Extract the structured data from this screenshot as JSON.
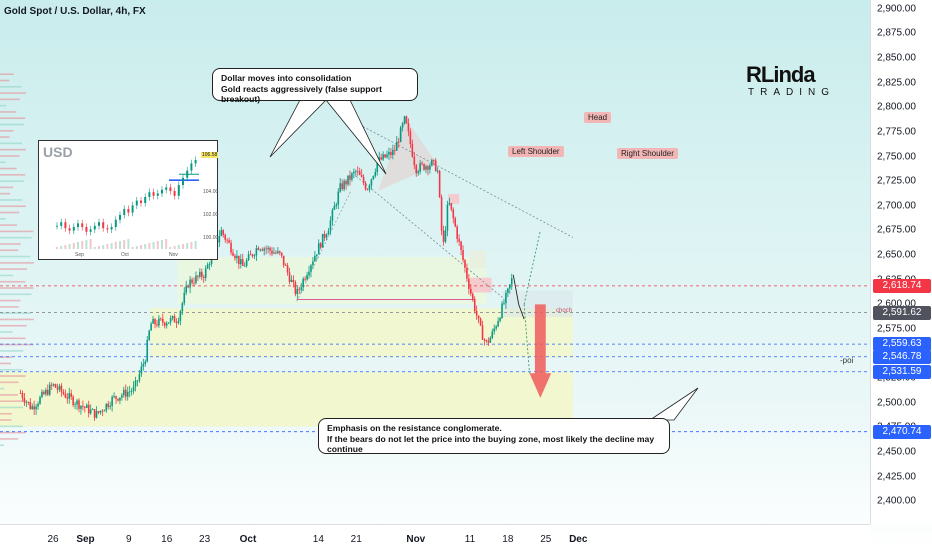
{
  "chart_title": "Gold Spot / U.S. Dollar, 4h, FX",
  "colors": {
    "up": "#089981",
    "down": "#f23645",
    "resistance": "#f23645",
    "current": "#50535e",
    "support": "#2962ff",
    "arrow": "#f05a5a",
    "zone": "#f3f7c8"
  },
  "chart_data": {
    "type": "candlestick",
    "title": "Gold Spot / U.S. Dollar, 4h, FX",
    "y_axis": {
      "ticks": [
        "2,900.00",
        "2,875.00",
        "2,850.00",
        "2,825.00",
        "2,800.00",
        "2,775.00",
        "2,750.00",
        "2,725.00",
        "2,700.00",
        "2,675.00",
        "2,650.00",
        "2,625.00",
        "2,600.00",
        "2,575.00",
        "2,550.00",
        "2,525.00",
        "2,500.00",
        "2,475.00",
        "2,450.00",
        "2,425.00",
        "2,400.00"
      ],
      "tick_values": [
        2900,
        2875,
        2850,
        2825,
        2800,
        2775,
        2750,
        2725,
        2700,
        2675,
        2650,
        2625,
        2600,
        2575,
        2550,
        2525,
        2500,
        2475,
        2450,
        2425,
        2400
      ],
      "range": [
        2377,
        2909
      ]
    },
    "x_axis": {
      "ticks": [
        {
          "label": "26",
          "bold": false
        },
        {
          "label": "Sep",
          "bold": true
        },
        {
          "label": "9",
          "bold": false
        },
        {
          "label": "16",
          "bold": false
        },
        {
          "label": "23",
          "bold": false
        },
        {
          "label": "Oct",
          "bold": true
        },
        {
          "label": "14",
          "bold": false
        },
        {
          "label": "21",
          "bold": false
        },
        {
          "label": "Nov",
          "bold": true
        },
        {
          "label": "11",
          "bold": false
        },
        {
          "label": "18",
          "bold": false
        },
        {
          "label": "25",
          "bold": false
        },
        {
          "label": "Dec",
          "bold": true
        }
      ]
    },
    "price_labels": [
      {
        "label": "2,618.74",
        "value": 2618.74,
        "kind": "resistance"
      },
      {
        "label": "2,591.62",
        "value": 2591.62,
        "kind": "current"
      },
      {
        "label": "2,559.63",
        "value": 2559.63,
        "kind": "support"
      },
      {
        "label": "2,546.78",
        "value": 2546.78,
        "kind": "support"
      },
      {
        "label": "2,531.59",
        "value": 2531.59,
        "kind": "support"
      },
      {
        "label": "2,470.74",
        "value": 2470.74,
        "kind": "support"
      }
    ],
    "price_path": [
      {
        "date": "Aug 20",
        "price": 2510
      },
      {
        "date": "Aug 22",
        "price": 2495
      },
      {
        "date": "Aug 26",
        "price": 2518
      },
      {
        "date": "Aug 29",
        "price": 2505
      },
      {
        "date": "Sep 3",
        "price": 2488
      },
      {
        "date": "Sep 6",
        "price": 2504
      },
      {
        "date": "Sep 10",
        "price": 2514
      },
      {
        "date": "Sep 12",
        "price": 2545
      },
      {
        "date": "Sep 13",
        "price": 2580
      },
      {
        "date": "Sep 18",
        "price": 2585
      },
      {
        "date": "Sep 20",
        "price": 2622
      },
      {
        "date": "Sep 23",
        "price": 2631
      },
      {
        "date": "Sep 26",
        "price": 2675
      },
      {
        "date": "Sep 30",
        "price": 2638
      },
      {
        "date": "Oct 3",
        "price": 2660
      },
      {
        "date": "Oct 7",
        "price": 2650
      },
      {
        "date": "Oct 10",
        "price": 2610
      },
      {
        "date": "Oct 12",
        "price": 2635
      },
      {
        "date": "Oct 16",
        "price": 2680
      },
      {
        "date": "Oct 18",
        "price": 2718
      },
      {
        "date": "Oct 21",
        "price": 2735
      },
      {
        "date": "Oct 23",
        "price": 2718
      },
      {
        "date": "Oct 25",
        "price": 2745
      },
      {
        "date": "Oct 28",
        "price": 2755
      },
      {
        "date": "Oct 30",
        "price": 2788
      },
      {
        "date": "Nov 1",
        "price": 2738
      },
      {
        "date": "Nov 4",
        "price": 2743
      },
      {
        "date": "Nov 5",
        "price": 2738
      },
      {
        "date": "Nov 6",
        "price": 2655
      },
      {
        "date": "Nov 7",
        "price": 2705
      },
      {
        "date": "Nov 8",
        "price": 2685
      },
      {
        "date": "Nov 11",
        "price": 2615
      },
      {
        "date": "Nov 13",
        "price": 2573
      },
      {
        "date": "Nov 14",
        "price": 2560
      },
      {
        "date": "Nov 15",
        "price": 2568
      },
      {
        "date": "Nov 18",
        "price": 2612
      },
      {
        "date": "Nov 19",
        "price": 2630
      }
    ],
    "annotations": [
      {
        "label": "Left Shoulder",
        "date": "Oct 23",
        "price": 2756
      },
      {
        "label": "Head",
        "date": "Oct 30",
        "price": 2798
      },
      {
        "label": "Right Shoulder",
        "date": "Nov 5",
        "price": 2752
      }
    ],
    "marker_labels": {
      "choch": "choch",
      "poi": "-poi"
    }
  },
  "callouts": {
    "top": {
      "line1": "Dollar moves into consolidation",
      "line2": "Gold reacts aggressively (false support breakout)"
    },
    "bottom": {
      "line1": "Emphasis on the resistance conglomerate.",
      "line2": "If the bears do not let the price into the buying zone, most likely the decline may continue"
    }
  },
  "inset": {
    "title": "USD",
    "y_ticks": [
      "104.00",
      "102.00",
      "100.00"
    ],
    "x_ticks": [
      "Sep",
      "Oct",
      "Nov"
    ],
    "last_price": "106.58",
    "bars": [
      101.1,
      101.4,
      100.9,
      100.7,
      101.0,
      101.3,
      101.0,
      100.6,
      100.8,
      101.1,
      101.4,
      100.9,
      100.8,
      101.0,
      101.6,
      102.0,
      102.5,
      102.2,
      102.8,
      103.2,
      103.0,
      103.5,
      103.9,
      103.6,
      103.8,
      104.1,
      104.3,
      104.0,
      103.6,
      104.5,
      105.1,
      105.7,
      106.3,
      106.58
    ]
  },
  "logo": {
    "line1": "RLinda",
    "line2": "TRADING"
  }
}
